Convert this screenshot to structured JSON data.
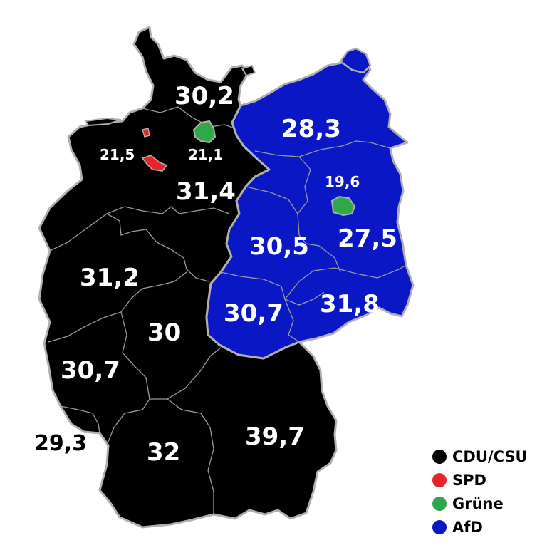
{
  "colors": {
    "CDU/CSU": "#000000",
    "SPD": "#e8242a",
    "Grüne": "#2ea84a",
    "AfD": "#0a17c4"
  },
  "regions": [
    {
      "id": "schleswig-holstein",
      "value": "30,2",
      "party": "CDU/CSU"
    },
    {
      "id": "hamburg",
      "value": "21,1",
      "party": "Grüne"
    },
    {
      "id": "bremen",
      "value": "21,5",
      "party": "SPD"
    },
    {
      "id": "niedersachsen",
      "value": "31,4",
      "party": "CDU/CSU"
    },
    {
      "id": "mecklenburg-vorpommern",
      "value": "28,3",
      "party": "AfD"
    },
    {
      "id": "berlin",
      "value": "19,6",
      "party": "Grüne"
    },
    {
      "id": "brandenburg",
      "value": "27,5",
      "party": "AfD"
    },
    {
      "id": "sachsen-anhalt",
      "value": "30,5",
      "party": "AfD"
    },
    {
      "id": "thueringen",
      "value": "30,7",
      "party": "AfD"
    },
    {
      "id": "sachsen",
      "value": "31,8",
      "party": "AfD"
    },
    {
      "id": "nordrhein-westfalen",
      "value": "31,2",
      "party": "CDU/CSU"
    },
    {
      "id": "hessen",
      "value": "30",
      "party": "CDU/CSU"
    },
    {
      "id": "rheinland-pfalz",
      "value": "30,7",
      "party": "CDU/CSU"
    },
    {
      "id": "saarland",
      "value": "29,3",
      "party": "CDU/CSU"
    },
    {
      "id": "baden-wuerttemberg",
      "value": "32",
      "party": "CDU/CSU"
    },
    {
      "id": "bayern",
      "value": "39,7",
      "party": "CDU/CSU"
    }
  ],
  "legend": [
    {
      "label": "CDU/CSU",
      "color": "#000000"
    },
    {
      "label": "SPD",
      "color": "#e8242a"
    },
    {
      "label": "Grüne",
      "color": "#2ea84a"
    },
    {
      "label": "AfD",
      "color": "#0a17c4"
    }
  ]
}
